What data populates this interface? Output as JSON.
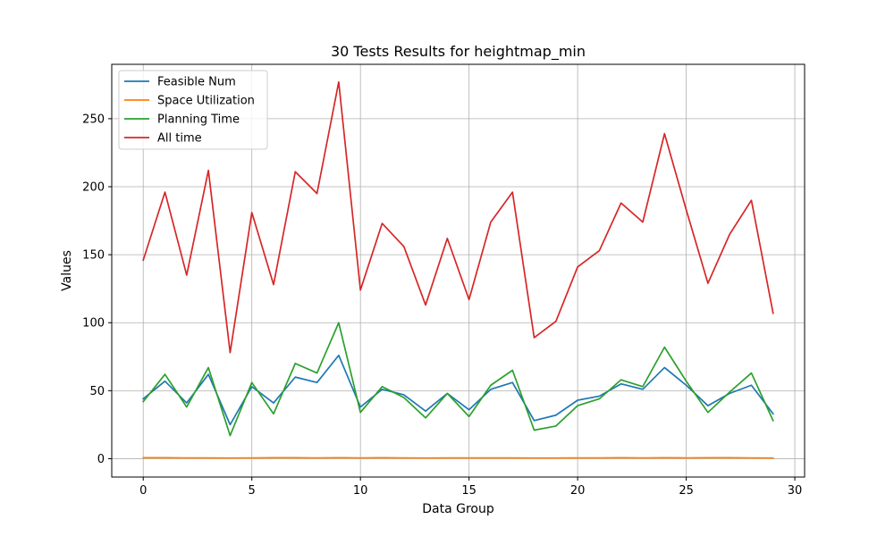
{
  "chart_data": {
    "type": "line",
    "title": "30 Tests Results for heightmap_min",
    "xlabel": "Data Group",
    "ylabel": "Values",
    "xlim": [
      -1.45,
      30.45
    ],
    "ylim": [
      -13.5,
      290.0
    ],
    "x_ticks": [
      0,
      5,
      10,
      15,
      20,
      25,
      30
    ],
    "y_ticks": [
      0,
      50,
      100,
      150,
      200,
      250
    ],
    "grid": true,
    "legend_position": "upper-left",
    "x": [
      0,
      1,
      2,
      3,
      4,
      5,
      6,
      7,
      8,
      9,
      10,
      11,
      12,
      13,
      14,
      15,
      16,
      17,
      18,
      19,
      20,
      21,
      22,
      23,
      24,
      25,
      26,
      27,
      28,
      29
    ],
    "series": [
      {
        "name": "Feasible Num",
        "color": "#1f77b4",
        "values": [
          44,
          57,
          41,
          62,
          25,
          53,
          41,
          60,
          56,
          76,
          38,
          51,
          47,
          35,
          48,
          36,
          51,
          56,
          28,
          32,
          43,
          46,
          55,
          51,
          67,
          54,
          39,
          48,
          54,
          33
        ]
      },
      {
        "name": "Space Utilization",
        "color": "#ff7f0e",
        "values": [
          0.7,
          0.7,
          0.6,
          0.6,
          0.5,
          0.6,
          0.7,
          0.7,
          0.6,
          0.7,
          0.6,
          0.7,
          0.6,
          0.5,
          0.6,
          0.6,
          0.6,
          0.6,
          0.5,
          0.5,
          0.6,
          0.6,
          0.7,
          0.6,
          0.7,
          0.6,
          0.7,
          0.7,
          0.6,
          0.5
        ]
      },
      {
        "name": "Planning Time",
        "color": "#2ca02c",
        "values": [
          42,
          62,
          38,
          67,
          17,
          56,
          33,
          70,
          63,
          100,
          34,
          53,
          45,
          30,
          48,
          31,
          54,
          65,
          21,
          24,
          39,
          44,
          58,
          53,
          82,
          57,
          34,
          49,
          63,
          28
        ]
      },
      {
        "name": "All time",
        "color": "#d62728",
        "values": [
          146,
          196,
          135,
          212,
          78,
          181,
          128,
          211,
          195,
          277,
          124,
          173,
          156,
          113,
          162,
          117,
          174,
          196,
          89,
          101,
          141,
          153,
          188,
          174,
          239,
          183,
          129,
          165,
          190,
          107
        ]
      }
    ]
  }
}
